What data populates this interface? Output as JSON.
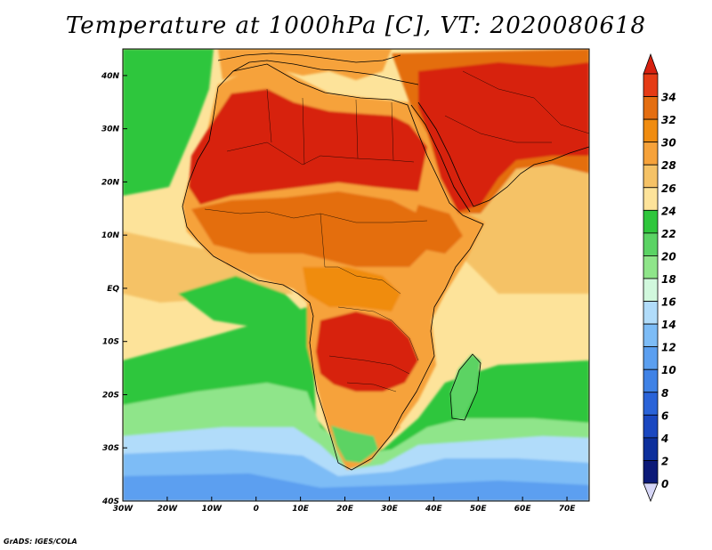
{
  "title": "Temperature at 1000hPa [C], VT: 2020080618",
  "credit": "GrADS: IGES/COLA",
  "map": {
    "lon_range": [
      -30,
      75
    ],
    "lat_range": [
      -40,
      45
    ],
    "lon_ticks": [
      {
        "value": -30,
        "label": "30W"
      },
      {
        "value": -20,
        "label": "20W"
      },
      {
        "value": -10,
        "label": "10W"
      },
      {
        "value": 0,
        "label": "0"
      },
      {
        "value": 10,
        "label": "10E"
      },
      {
        "value": 20,
        "label": "20E"
      },
      {
        "value": 30,
        "label": "30E"
      },
      {
        "value": 40,
        "label": "40E"
      },
      {
        "value": 50,
        "label": "50E"
      },
      {
        "value": 60,
        "label": "60E"
      },
      {
        "value": 70,
        "label": "70E"
      }
    ],
    "lat_ticks": [
      {
        "value": 40,
        "label": "40N"
      },
      {
        "value": 30,
        "label": "30N"
      },
      {
        "value": 20,
        "label": "20N"
      },
      {
        "value": 10,
        "label": "10N"
      },
      {
        "value": 0,
        "label": "EQ"
      },
      {
        "value": -10,
        "label": "10S"
      },
      {
        "value": -20,
        "label": "20S"
      },
      {
        "value": -30,
        "label": "30S"
      },
      {
        "value": -40,
        "label": "40S"
      }
    ]
  },
  "colorbar": {
    "levels": [
      {
        "label": "34",
        "color": "#e53b15"
      },
      {
        "label": "32",
        "color": "#e46e11"
      },
      {
        "label": "30",
        "color": "#f08c10"
      },
      {
        "label": "28",
        "color": "#f6a23a"
      },
      {
        "label": "26",
        "color": "#f5c266"
      },
      {
        "label": "24",
        "color": "#fde39a"
      },
      {
        "label": "22",
        "color": "#2fc63c"
      },
      {
        "label": "20",
        "color": "#5bd364"
      },
      {
        "label": "18",
        "color": "#8fe58a"
      },
      {
        "label": "16",
        "color": "#d1f8dd"
      },
      {
        "label": "14",
        "color": "#b1dcfa"
      },
      {
        "label": "12",
        "color": "#7dbcf6"
      },
      {
        "label": "10",
        "color": "#5b9ff0"
      },
      {
        "label": "8",
        "color": "#3f82e6"
      },
      {
        "label": "6",
        "color": "#2a63d8"
      },
      {
        "label": "4",
        "color": "#1a47c0"
      },
      {
        "label": "2",
        "color": "#0d2f9c"
      },
      {
        "label": "0",
        "color": "#0c1a78"
      }
    ],
    "top_color": "#d7200f",
    "bottom_color": "#d6d6f7"
  },
  "colors": {
    "ocean_tropical": "#fde39a",
    "ocean_warm": "#f5c266",
    "ocean_green": "#2fc63c",
    "ocean_lightgreen": "#8fe58a",
    "ocean_cool": "#b1dcfa",
    "ocean_cold": "#7dbcf6",
    "ocean_coldest": "#5b9ff0",
    "land_hot": "#d7200f",
    "land_warm": "#e46e11",
    "land_mild": "#f08c10",
    "land_temperate": "#f6a23a",
    "land_cool": "#5bd364"
  }
}
